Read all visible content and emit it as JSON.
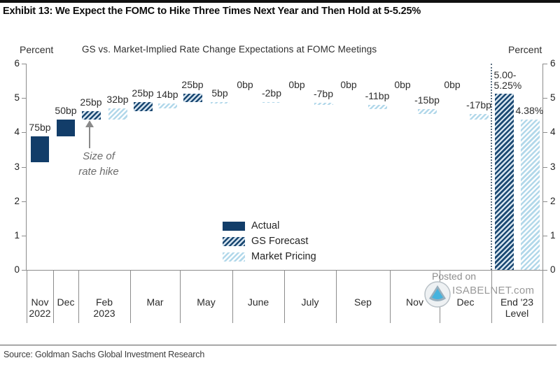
{
  "header": {
    "title": "Exhibit 13: We Expect the FOMC to Hike Three Times Next Year and Then Hold at 5-5.25%"
  },
  "chart": {
    "subtitle": "GS vs. Market-Implied Rate Change Expectations at FOMC Meetings",
    "left_axis_label": "Percent",
    "right_axis_label": "Percent"
  },
  "chart_data": {
    "type": "bar",
    "subtype": "waterfall",
    "title": "GS vs. Market-Implied Rate Change Expectations at FOMC Meetings",
    "ylabel": "Percent",
    "ylim": [
      0,
      6
    ],
    "y_ticks": [
      0,
      1,
      2,
      3,
      4,
      5,
      6
    ],
    "grid": false,
    "legend_position": "inside-bottom-center",
    "categories": [
      "Nov 2022",
      "Dec",
      "Feb 2023",
      "Mar",
      "May",
      "June",
      "July",
      "Sep",
      "Nov",
      "Dec",
      "End '23 Level"
    ],
    "series": [
      {
        "name": "Actual",
        "changes_bp": [
          75,
          50,
          null,
          null,
          null,
          null,
          null,
          null,
          null,
          null,
          null
        ]
      },
      {
        "name": "GS Forecast",
        "changes_bp": [
          null,
          null,
          25,
          25,
          25,
          0,
          0,
          0,
          0,
          0,
          null
        ],
        "end_level": "5.00-5.25%"
      },
      {
        "name": "Market Pricing",
        "changes_bp": [
          null,
          null,
          32,
          14,
          5,
          -2,
          -7,
          -11,
          -15,
          -17,
          null
        ],
        "end_level_pct": 4.38
      }
    ],
    "meetings": [
      {
        "category": [
          "Nov",
          "2022"
        ],
        "bars": [
          {
            "series": "actual",
            "from": 3.125,
            "to": 3.875,
            "change_bp": 75,
            "label": "75bp"
          }
        ]
      },
      {
        "category": [
          "Dec"
        ],
        "bars": [
          {
            "series": "actual",
            "from": 3.875,
            "to": 4.375,
            "change_bp": 50,
            "label": "50bp"
          }
        ]
      },
      {
        "category": [
          "Feb",
          "2023"
        ],
        "bars": [
          {
            "series": "gs",
            "from": 4.375,
            "to": 4.625,
            "change_bp": 25,
            "label": "25bp"
          },
          {
            "series": "market",
            "from": 4.375,
            "to": 4.695,
            "change_bp": 32,
            "label": "32bp"
          }
        ]
      },
      {
        "category": [
          "Mar"
        ],
        "bars": [
          {
            "series": "gs",
            "from": 4.625,
            "to": 4.875,
            "change_bp": 25,
            "label": "25bp"
          },
          {
            "series": "market",
            "from": 4.695,
            "to": 4.835,
            "change_bp": 14,
            "label": "14bp"
          }
        ]
      },
      {
        "category": [
          "May"
        ],
        "bars": [
          {
            "series": "gs",
            "from": 4.875,
            "to": 5.125,
            "change_bp": 25,
            "label": "25bp"
          },
          {
            "series": "market",
            "from": 4.835,
            "to": 4.885,
            "change_bp": 5,
            "label": "5bp"
          }
        ]
      },
      {
        "category": [
          "June"
        ],
        "bars": [
          {
            "series": "gs",
            "from": 5.125,
            "to": 5.125,
            "change_bp": 0,
            "label": "0bp"
          },
          {
            "series": "market",
            "from": 4.885,
            "to": 4.865,
            "change_bp": -2,
            "label": "-2bp"
          }
        ]
      },
      {
        "category": [
          "July"
        ],
        "bars": [
          {
            "series": "gs",
            "from": 5.125,
            "to": 5.125,
            "change_bp": 0,
            "label": "0bp"
          },
          {
            "series": "market",
            "from": 4.865,
            "to": 4.795,
            "change_bp": -7,
            "label": "-7bp"
          }
        ]
      },
      {
        "category": [
          "Sep"
        ],
        "bars": [
          {
            "series": "gs",
            "from": 5.125,
            "to": 5.125,
            "change_bp": 0,
            "label": "0bp"
          },
          {
            "series": "market",
            "from": 4.795,
            "to": 4.685,
            "change_bp": -11,
            "label": "-11bp"
          }
        ]
      },
      {
        "category": [
          "Nov"
        ],
        "bars": [
          {
            "series": "gs",
            "from": 5.125,
            "to": 5.125,
            "change_bp": 0,
            "label": "0bp"
          },
          {
            "series": "market",
            "from": 4.685,
            "to": 4.535,
            "change_bp": -15,
            "label": "-15bp"
          }
        ]
      },
      {
        "category": [
          "Dec"
        ],
        "bars": [
          {
            "series": "gs",
            "from": 5.125,
            "to": 5.125,
            "change_bp": 0,
            "label": "0bp"
          },
          {
            "series": "market",
            "from": 4.535,
            "to": 4.365,
            "change_bp": -17,
            "label": "-17bp"
          }
        ]
      },
      {
        "category": [
          "End '23",
          "Level"
        ],
        "end_level": true,
        "bars": [
          {
            "series": "gs",
            "from": 0,
            "to": 5.125,
            "label_lines": [
              "5.00-",
              "5.25%"
            ],
            "label_align": "left"
          },
          {
            "series": "market",
            "from": 0,
            "to": 4.38,
            "label": "4.38%",
            "label_dx": -7
          }
        ]
      }
    ],
    "legend": [
      {
        "label": "Actual",
        "style": "solid"
      },
      {
        "label": "GS Forecast",
        "style": "hatch-dark"
      },
      {
        "label": "Market Pricing",
        "style": "hatch-light"
      }
    ],
    "colors": {
      "navy": "#123d69",
      "hatch_dark_stripe": "#1a4872",
      "hatch_light_stripe": "#b2d8ea",
      "axis": "#8c8c8c"
    }
  },
  "annotation": {
    "line1": "Size of",
    "line2": "rate hike"
  },
  "watermark": {
    "line1": "Posted on",
    "line2": "ISABELNET.com"
  },
  "footer": {
    "source": "Source: Goldman Sachs Global Investment Research"
  }
}
